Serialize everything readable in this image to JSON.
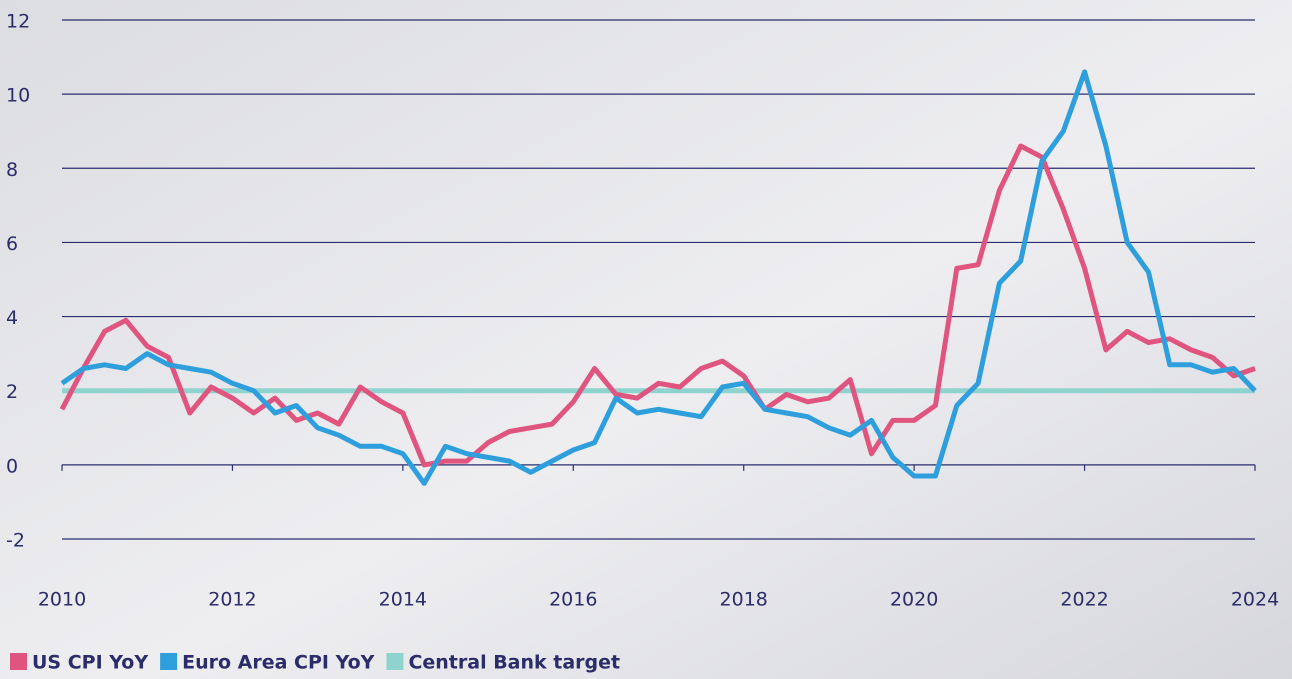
{
  "chart_data": {
    "type": "line",
    "x": [
      2010,
      2010.25,
      2010.5,
      2010.75,
      2011,
      2011.25,
      2011.5,
      2011.75,
      2012,
      2012.25,
      2012.5,
      2012.75,
      2013,
      2013.25,
      2013.5,
      2013.75,
      2014,
      2014.25,
      2014.5,
      2014.75,
      2015,
      2015.25,
      2015.5,
      2015.75,
      2016,
      2016.25,
      2016.5,
      2016.75,
      2017,
      2017.25,
      2017.5,
      2017.75,
      2018,
      2018.25,
      2018.5,
      2018.75,
      2019,
      2019.25,
      2019.5,
      2019.75,
      2020,
      2020.25,
      2020.5,
      2020.75,
      2021,
      2021.25,
      2021.5,
      2021.75,
      2022,
      2022.25,
      2022.5,
      2022.75,
      2023,
      2023.25,
      2023.5,
      2023.75,
      2024
    ],
    "series": [
      {
        "name": "US CPI YoY",
        "color": "#e0557f",
        "values": [
          1.5,
          2.6,
          3.6,
          3.9,
          3.2,
          2.9,
          1.4,
          2.1,
          1.8,
          1.4,
          1.8,
          1.2,
          1.4,
          1.1,
          2.1,
          1.7,
          1.4,
          0.0,
          0.1,
          0.1,
          0.6,
          0.9,
          1.0,
          1.1,
          1.7,
          2.6,
          1.9,
          1.8,
          2.2,
          2.1,
          2.6,
          2.8,
          2.4,
          1.5,
          1.9,
          1.7,
          1.8,
          2.3,
          0.3,
          1.2,
          1.2,
          1.6,
          5.3,
          5.4,
          7.4,
          8.6,
          8.3,
          6.9,
          5.3,
          3.1,
          3.6,
          3.3,
          3.4,
          3.1,
          2.9,
          2.4,
          2.6
        ]
      },
      {
        "name": "Euro Area CPI YoY",
        "color": "#2e9fdc",
        "values": [
          2.2,
          2.6,
          2.7,
          2.6,
          3.0,
          2.7,
          2.6,
          2.5,
          2.2,
          2.0,
          1.4,
          1.6,
          1.0,
          0.8,
          0.5,
          0.5,
          0.3,
          -0.5,
          0.5,
          0.3,
          0.2,
          0.1,
          -0.2,
          0.1,
          0.4,
          0.6,
          1.8,
          1.4,
          1.5,
          1.4,
          1.3,
          2.1,
          2.2,
          1.5,
          1.4,
          1.3,
          1.0,
          0.8,
          1.2,
          0.2,
          -0.3,
          -0.3,
          1.6,
          2.2,
          4.9,
          5.5,
          8.2,
          9.0,
          10.6,
          8.6,
          6.0,
          5.2,
          2.7,
          2.7,
          2.5,
          2.6,
          2.0
        ]
      },
      {
        "name": "Central Bank target",
        "color": "#8fd3cf",
        "x": [
          2010,
          2024
        ],
        "values": [
          2,
          2
        ]
      }
    ],
    "xlim": [
      2010,
      2024
    ],
    "xticks": [
      2010,
      2012,
      2014,
      2016,
      2018,
      2020,
      2022,
      2024
    ],
    "ylim": [
      -2,
      12
    ],
    "yticks": [
      -2,
      0,
      2,
      4,
      6,
      8,
      10,
      12
    ],
    "grid": true
  }
}
